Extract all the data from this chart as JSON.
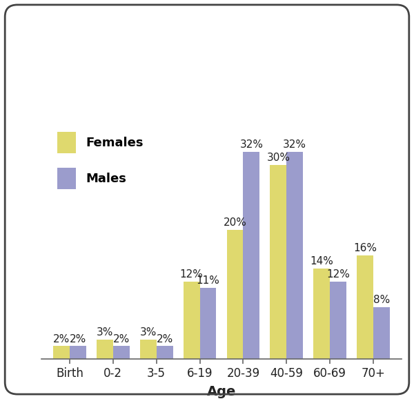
{
  "categories": [
    "Birth",
    "0-2",
    "3-5",
    "6-19",
    "20-39",
    "40-59",
    "60-69",
    "70+"
  ],
  "females": [
    2,
    3,
    3,
    12,
    20,
    30,
    14,
    16
  ],
  "males": [
    2,
    2,
    2,
    11,
    32,
    32,
    12,
    8
  ],
  "female_color": "#dfd96e",
  "male_color": "#9b9ccc",
  "xlabel": "Age",
  "legend_females": "Females",
  "legend_males": "Males",
  "bar_width": 0.38,
  "ylim": [
    0,
    37
  ],
  "background_color": "#ffffff",
  "border_color": "#555555",
  "label_fontsize": 13,
  "tick_fontsize": 12,
  "annotation_fontsize": 11
}
